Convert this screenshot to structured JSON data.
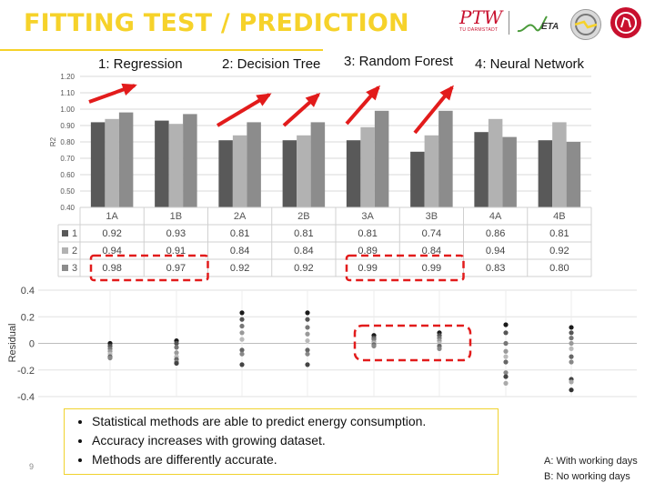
{
  "title": "FITTING TEST / PREDICTION",
  "logos": {
    "ptw": "PTW",
    "ptw_sub": "TU DARMSTADT",
    "eta": "ETA"
  },
  "models": [
    "1: Regression",
    "2: Decision Tree",
    "3: Random Forest",
    "4: Neural Network"
  ],
  "colors": {
    "series1": "#595959",
    "series2": "#b2b2b2",
    "series3": "#8c8c8c",
    "arrow": "#e21b1b",
    "highlight": "#e21b1b",
    "accent": "#f6d22a"
  },
  "chart_data": [
    {
      "type": "bar",
      "categories": [
        "1A",
        "1B",
        "2A",
        "2B",
        "3A",
        "3B",
        "4A",
        "4B"
      ],
      "series": [
        {
          "name": "1",
          "values": [
            0.92,
            0.93,
            0.81,
            0.81,
            0.81,
            0.74,
            0.86,
            0.81
          ]
        },
        {
          "name": "2",
          "values": [
            0.94,
            0.91,
            0.84,
            0.84,
            0.89,
            0.84,
            0.94,
            0.92
          ]
        },
        {
          "name": "3",
          "values": [
            0.98,
            0.97,
            0.92,
            0.92,
            0.99,
            0.99,
            0.83,
            0.8
          ]
        }
      ],
      "ylabel": "R2",
      "ylim": [
        0.4,
        1.2
      ],
      "yticks": [
        "0.40",
        "0.50",
        "0.60",
        "0.70",
        "0.80",
        "0.90",
        "1.00",
        "1.10",
        "1.20"
      ],
      "table_rows": [
        [
          "0.92",
          "0.93",
          "0.81",
          "0.81",
          "0.81",
          "0.74",
          "0.86",
          "0.81"
        ],
        [
          "0.94",
          "0.91",
          "0.84",
          "0.84",
          "0.89",
          "0.84",
          "0.94",
          "0.92"
        ],
        [
          "0.98",
          "0.97",
          "0.92",
          "0.92",
          "0.99",
          "0.99",
          "0.83",
          "0.80"
        ]
      ]
    },
    {
      "type": "scatter",
      "ylabel": "Residual",
      "ylim": [
        -0.4,
        0.4
      ],
      "yticks": [
        "0.4",
        "0.2",
        "0",
        "-0.2",
        "-0.4"
      ],
      "series": [
        {
          "name": "1A",
          "values": [
            0.0,
            -0.02,
            -0.04,
            -0.06,
            -0.08,
            -0.1,
            -0.11
          ]
        },
        {
          "name": "1B",
          "values": [
            0.02,
            0.0,
            -0.03,
            -0.07,
            -0.1,
            -0.12,
            -0.14,
            -0.15
          ]
        },
        {
          "name": "2A",
          "values": [
            0.23,
            0.18,
            0.13,
            0.08,
            0.03,
            -0.05,
            -0.08,
            -0.16
          ]
        },
        {
          "name": "2B",
          "values": [
            0.23,
            0.18,
            0.12,
            0.07,
            0.02,
            -0.05,
            -0.08,
            -0.16
          ]
        },
        {
          "name": "3A",
          "values": [
            0.06,
            0.04,
            0.03,
            0.01,
            0.0,
            -0.01,
            -0.02
          ]
        },
        {
          "name": "3B",
          "values": [
            0.08,
            0.06,
            0.04,
            0.02,
            0.0,
            -0.02,
            -0.04
          ]
        },
        {
          "name": "4A",
          "values": [
            0.14,
            0.08,
            0.0,
            -0.06,
            -0.1,
            -0.14,
            -0.22,
            -0.25,
            -0.3
          ]
        },
        {
          "name": "4B",
          "values": [
            0.12,
            0.08,
            0.04,
            0.0,
            -0.04,
            -0.1,
            -0.14,
            -0.27,
            -0.29,
            -0.35
          ]
        }
      ]
    }
  ],
  "bullets": [
    "Statistical methods are able to predict energy consumption.",
    "Accuracy increases with growing dataset.",
    "Methods are differently accurate."
  ],
  "legend_note": {
    "a": "A: With working days",
    "b": "B: No working days"
  },
  "page_number": "9"
}
